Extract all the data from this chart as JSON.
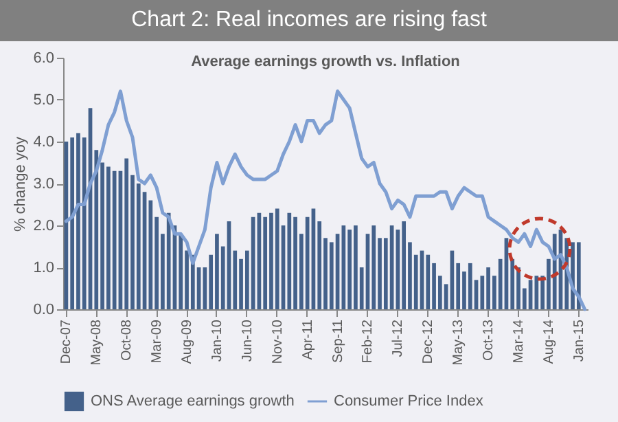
{
  "chart_data": {
    "type": "bar",
    "title": "Chart 2: Real incomes are rising fast",
    "subtitle": "Average earnings growth vs. Inflation",
    "ylabel": "% change yoy",
    "categories": [
      "Dec-07",
      null,
      null,
      null,
      null,
      "May-08",
      null,
      null,
      null,
      null,
      "Oct-08",
      null,
      null,
      null,
      null,
      "Mar-09",
      null,
      null,
      null,
      null,
      "Aug-09",
      null,
      null,
      null,
      null,
      "Jan-10",
      null,
      null,
      null,
      null,
      "Jun-10",
      null,
      null,
      null,
      null,
      "Nov-10",
      null,
      null,
      null,
      null,
      "Apr-11",
      null,
      null,
      null,
      null,
      "Sep-11",
      null,
      null,
      null,
      null,
      "Feb-12",
      null,
      null,
      null,
      null,
      "Jul-12",
      null,
      null,
      null,
      null,
      "Dec-12",
      null,
      null,
      null,
      null,
      "May-13",
      null,
      null,
      null,
      null,
      "Oct-13",
      null,
      null,
      null,
      null,
      "Mar-14",
      null,
      null,
      null,
      null,
      "Aug-14",
      null,
      null,
      null,
      null,
      "Jan-15",
      null
    ],
    "series": [
      {
        "name": "ONS Average earnings growth",
        "color": "#44618a",
        "values": [
          4.0,
          4.1,
          4.2,
          4.1,
          4.8,
          3.8,
          3.5,
          3.4,
          3.3,
          3.3,
          3.6,
          3.2,
          3.0,
          2.8,
          2.6,
          2.2,
          1.8,
          2.3,
          2.0,
          1.8,
          1.4,
          1.3,
          1.0,
          1.0,
          1.3,
          1.8,
          1.5,
          2.1,
          1.4,
          1.2,
          1.4,
          2.2,
          2.3,
          2.2,
          2.3,
          2.4,
          2.0,
          2.3,
          2.2,
          1.8,
          2.2,
          2.4,
          2.1,
          1.7,
          1.6,
          1.8,
          2.0,
          1.9,
          2.0,
          1.0,
          1.8,
          2.0,
          1.7,
          1.7,
          2.0,
          1.9,
          2.1,
          1.6,
          1.3,
          1.4,
          1.3,
          1.1,
          0.8,
          0.6,
          1.4,
          1.1,
          0.9,
          1.1,
          0.7,
          0.8,
          1.0,
          0.8,
          1.2,
          1.7,
          1.2,
          1.0,
          0.5,
          0.7,
          0.8,
          0.8,
          1.2,
          1.8,
          1.9,
          1.7,
          1.6,
          1.6,
          null
        ]
      },
      {
        "name": "Consumer Price Index",
        "type": "line",
        "color": "#7f9fd2",
        "values": [
          2.1,
          2.2,
          2.5,
          2.5,
          3.0,
          3.3,
          3.8,
          4.4,
          4.7,
          5.2,
          4.5,
          4.1,
          3.1,
          3.0,
          3.2,
          2.9,
          2.3,
          2.2,
          1.8,
          1.8,
          1.6,
          1.1,
          1.5,
          1.9,
          2.9,
          3.5,
          3.0,
          3.4,
          3.7,
          3.4,
          3.2,
          3.1,
          3.1,
          3.1,
          3.2,
          3.3,
          3.7,
          4.0,
          4.4,
          4.0,
          4.5,
          4.5,
          4.2,
          4.4,
          4.5,
          5.2,
          5.0,
          4.8,
          4.2,
          3.6,
          3.4,
          3.5,
          3.0,
          2.8,
          2.4,
          2.6,
          2.5,
          2.2,
          2.7,
          2.7,
          2.7,
          2.7,
          2.8,
          2.8,
          2.4,
          2.7,
          2.9,
          2.8,
          2.7,
          2.7,
          2.2,
          2.1,
          2.0,
          1.9,
          1.7,
          1.6,
          1.8,
          1.5,
          1.9,
          1.6,
          1.5,
          1.2,
          1.3,
          1.0,
          0.5,
          0.3,
          0.0
        ]
      }
    ],
    "ylim": [
      0,
      6
    ],
    "yticks": [
      {
        "value": 0,
        "label": "0.0"
      },
      {
        "value": 1,
        "label": "1.0"
      },
      {
        "value": 2,
        "label": "2.0"
      },
      {
        "value": 3,
        "label": "3.0"
      },
      {
        "value": 4,
        "label": "4.0"
      },
      {
        "value": 5,
        "label": "5.0"
      },
      {
        "value": 6,
        "label": "6.0"
      }
    ],
    "grid": false,
    "legend": "bottom"
  }
}
